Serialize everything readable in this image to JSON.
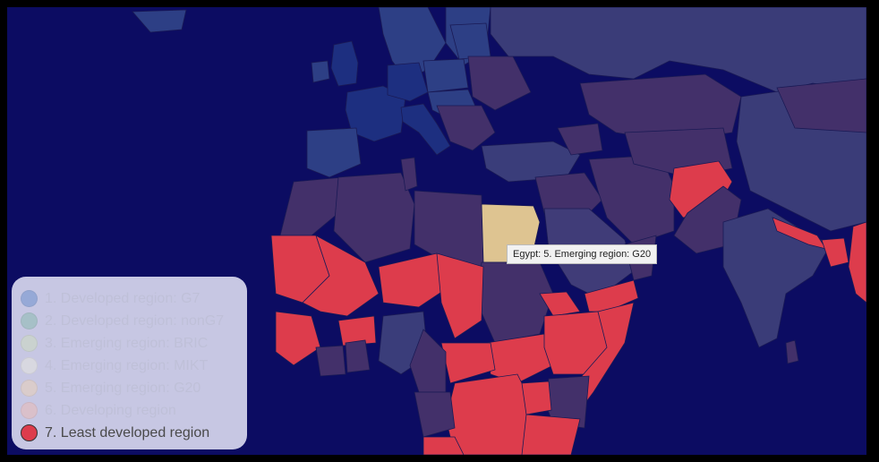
{
  "tooltip": {
    "text": "Egypt: 5. Emerging region: G20"
  },
  "legend": {
    "items": [
      {
        "label": "1. Developed region: G7",
        "color": "#5b86c9",
        "active": false
      },
      {
        "label": "2. Developed region: nonG7",
        "color": "#80b8a6",
        "active": false
      },
      {
        "label": "3. Emerging region: BRIC",
        "color": "#cfe0b8",
        "active": false
      },
      {
        "label": "4. Emerging region: MIKT",
        "color": "#eeeedd",
        "active": false
      },
      {
        "label": "5. Emerging region: G20",
        "color": "#f1d3b0",
        "active": false
      },
      {
        "label": "6. Developing region",
        "color": "#f1b8ae",
        "active": false
      },
      {
        "label": "7. Least developed region",
        "color": "#dd3c4c",
        "active": true
      }
    ]
  },
  "colors": {
    "ocean": "#0c0c62",
    "least_developed": "#dd3c4c",
    "hovered": "#dec491"
  }
}
